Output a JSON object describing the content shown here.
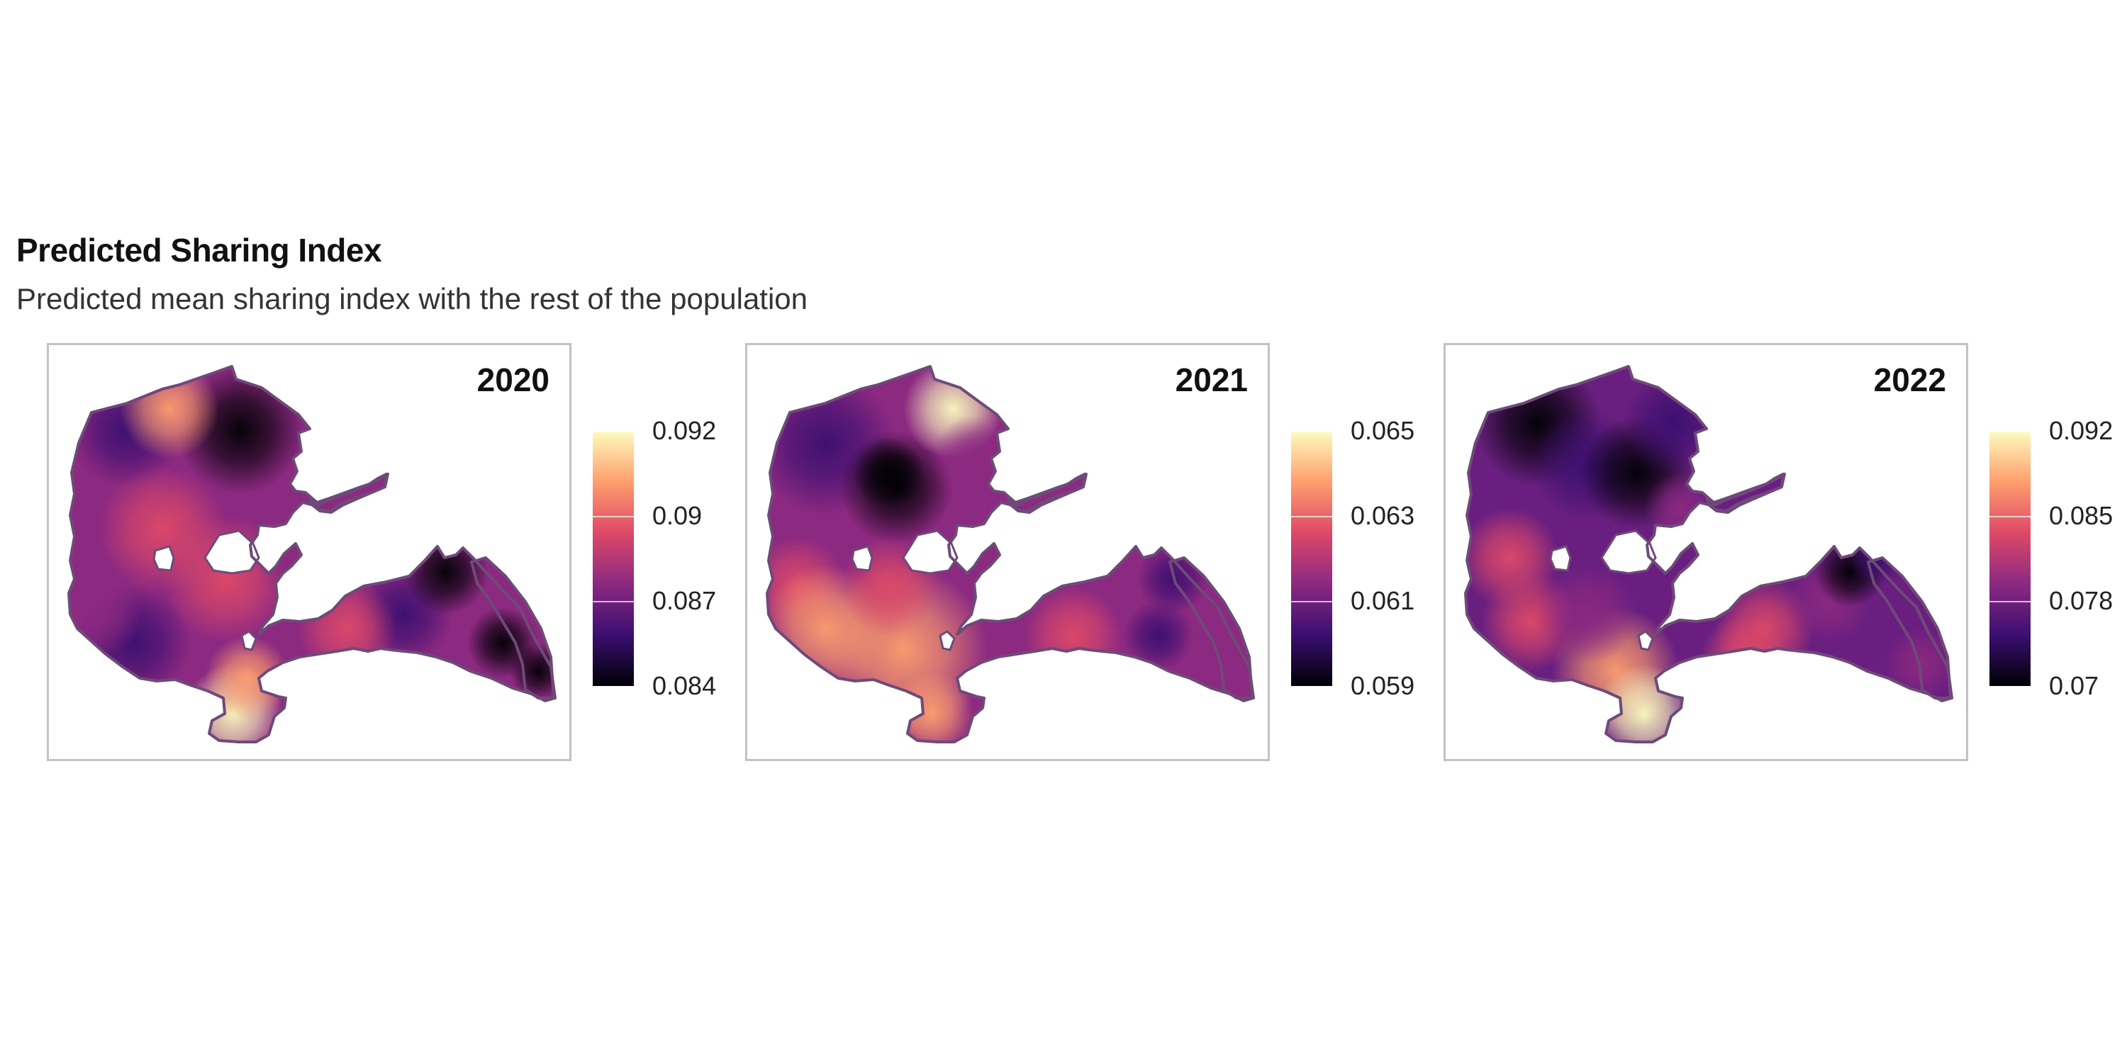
{
  "header": {
    "title": "Predicted Sharing Index",
    "subtitle": "Predicted mean sharing index with the rest of the population"
  },
  "colormap": {
    "name": "magma",
    "stops": [
      "#000004",
      "#3b0f70",
      "#8c2981",
      "#de4968",
      "#fe9f6d",
      "#fcfdbf"
    ]
  },
  "outline_color": "#6e4a78",
  "panels": [
    {
      "label": "2020",
      "legend": {
        "ticks": [
          "0.092",
          "0.09",
          "0.087",
          "0.084"
        ]
      },
      "pattern": "2020"
    },
    {
      "label": "2021",
      "legend": {
        "ticks": [
          "0.065",
          "0.063",
          "0.061",
          "0.059"
        ]
      },
      "pattern": "2021"
    },
    {
      "label": "2022",
      "legend": {
        "ticks": [
          "0.092",
          "0.085",
          "0.078",
          "0.07"
        ]
      },
      "pattern": "2022"
    }
  ]
}
